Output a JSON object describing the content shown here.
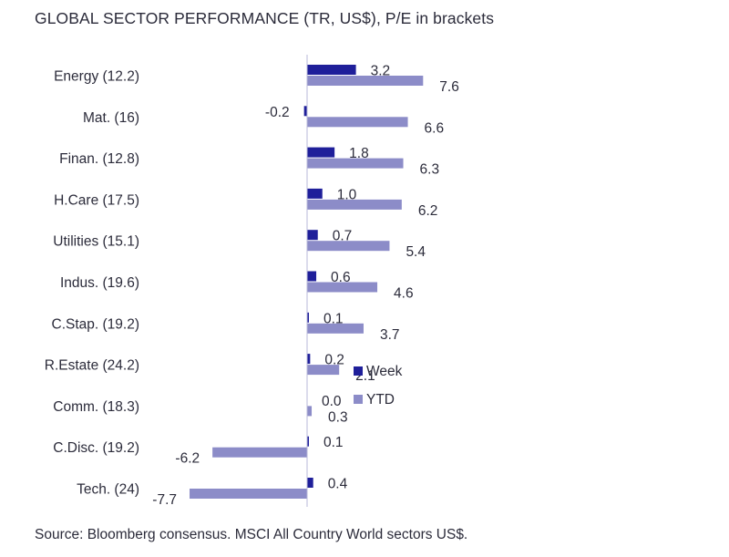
{
  "title": "GLOBAL SECTOR PERFORMANCE (TR, US$), P/E in brackets",
  "source": "Source: Bloomberg consensus. MSCI All Country World sectors US$.",
  "colors": {
    "week": "#1f1f9a",
    "ytd": "#8c8cc8",
    "axis": "#b8b8d8",
    "text": "#2b2b3a"
  },
  "chart_data": {
    "type": "bar",
    "orientation": "horizontal",
    "categories": [
      "Energy (12.2)",
      "Mat. (16)",
      "Finan. (12.8)",
      "H.Care (17.5)",
      "Utilities (15.1)",
      "Indus. (19.6)",
      "C.Stap. (19.2)",
      "R.Estate (24.2)",
      "Comm. (18.3)",
      "C.Disc. (19.2)",
      "Tech. (24)"
    ],
    "series": [
      {
        "name": "Week",
        "values": [
          3.2,
          -0.2,
          1.8,
          1.0,
          0.7,
          0.6,
          0.1,
          0.2,
          0.0,
          0.1,
          0.4
        ],
        "labels": [
          "3.2",
          "-0.2",
          "1.8",
          "1.0",
          "0.7",
          "0.6",
          "0.1",
          "0.2",
          "0.0",
          "0.1",
          "0.4"
        ]
      },
      {
        "name": "YTD",
        "values": [
          7.6,
          6.6,
          6.3,
          6.2,
          5.4,
          4.6,
          3.7,
          2.1,
          0.3,
          -6.2,
          -7.7
        ],
        "labels": [
          "7.6",
          "6.6",
          "6.3",
          "6.2",
          "5.4",
          "4.6",
          "3.7",
          "2.1",
          "0.3",
          "-6.2",
          "-7.7"
        ]
      }
    ],
    "legend": {
      "placement": "right-of-center"
    },
    "grid": false
  }
}
